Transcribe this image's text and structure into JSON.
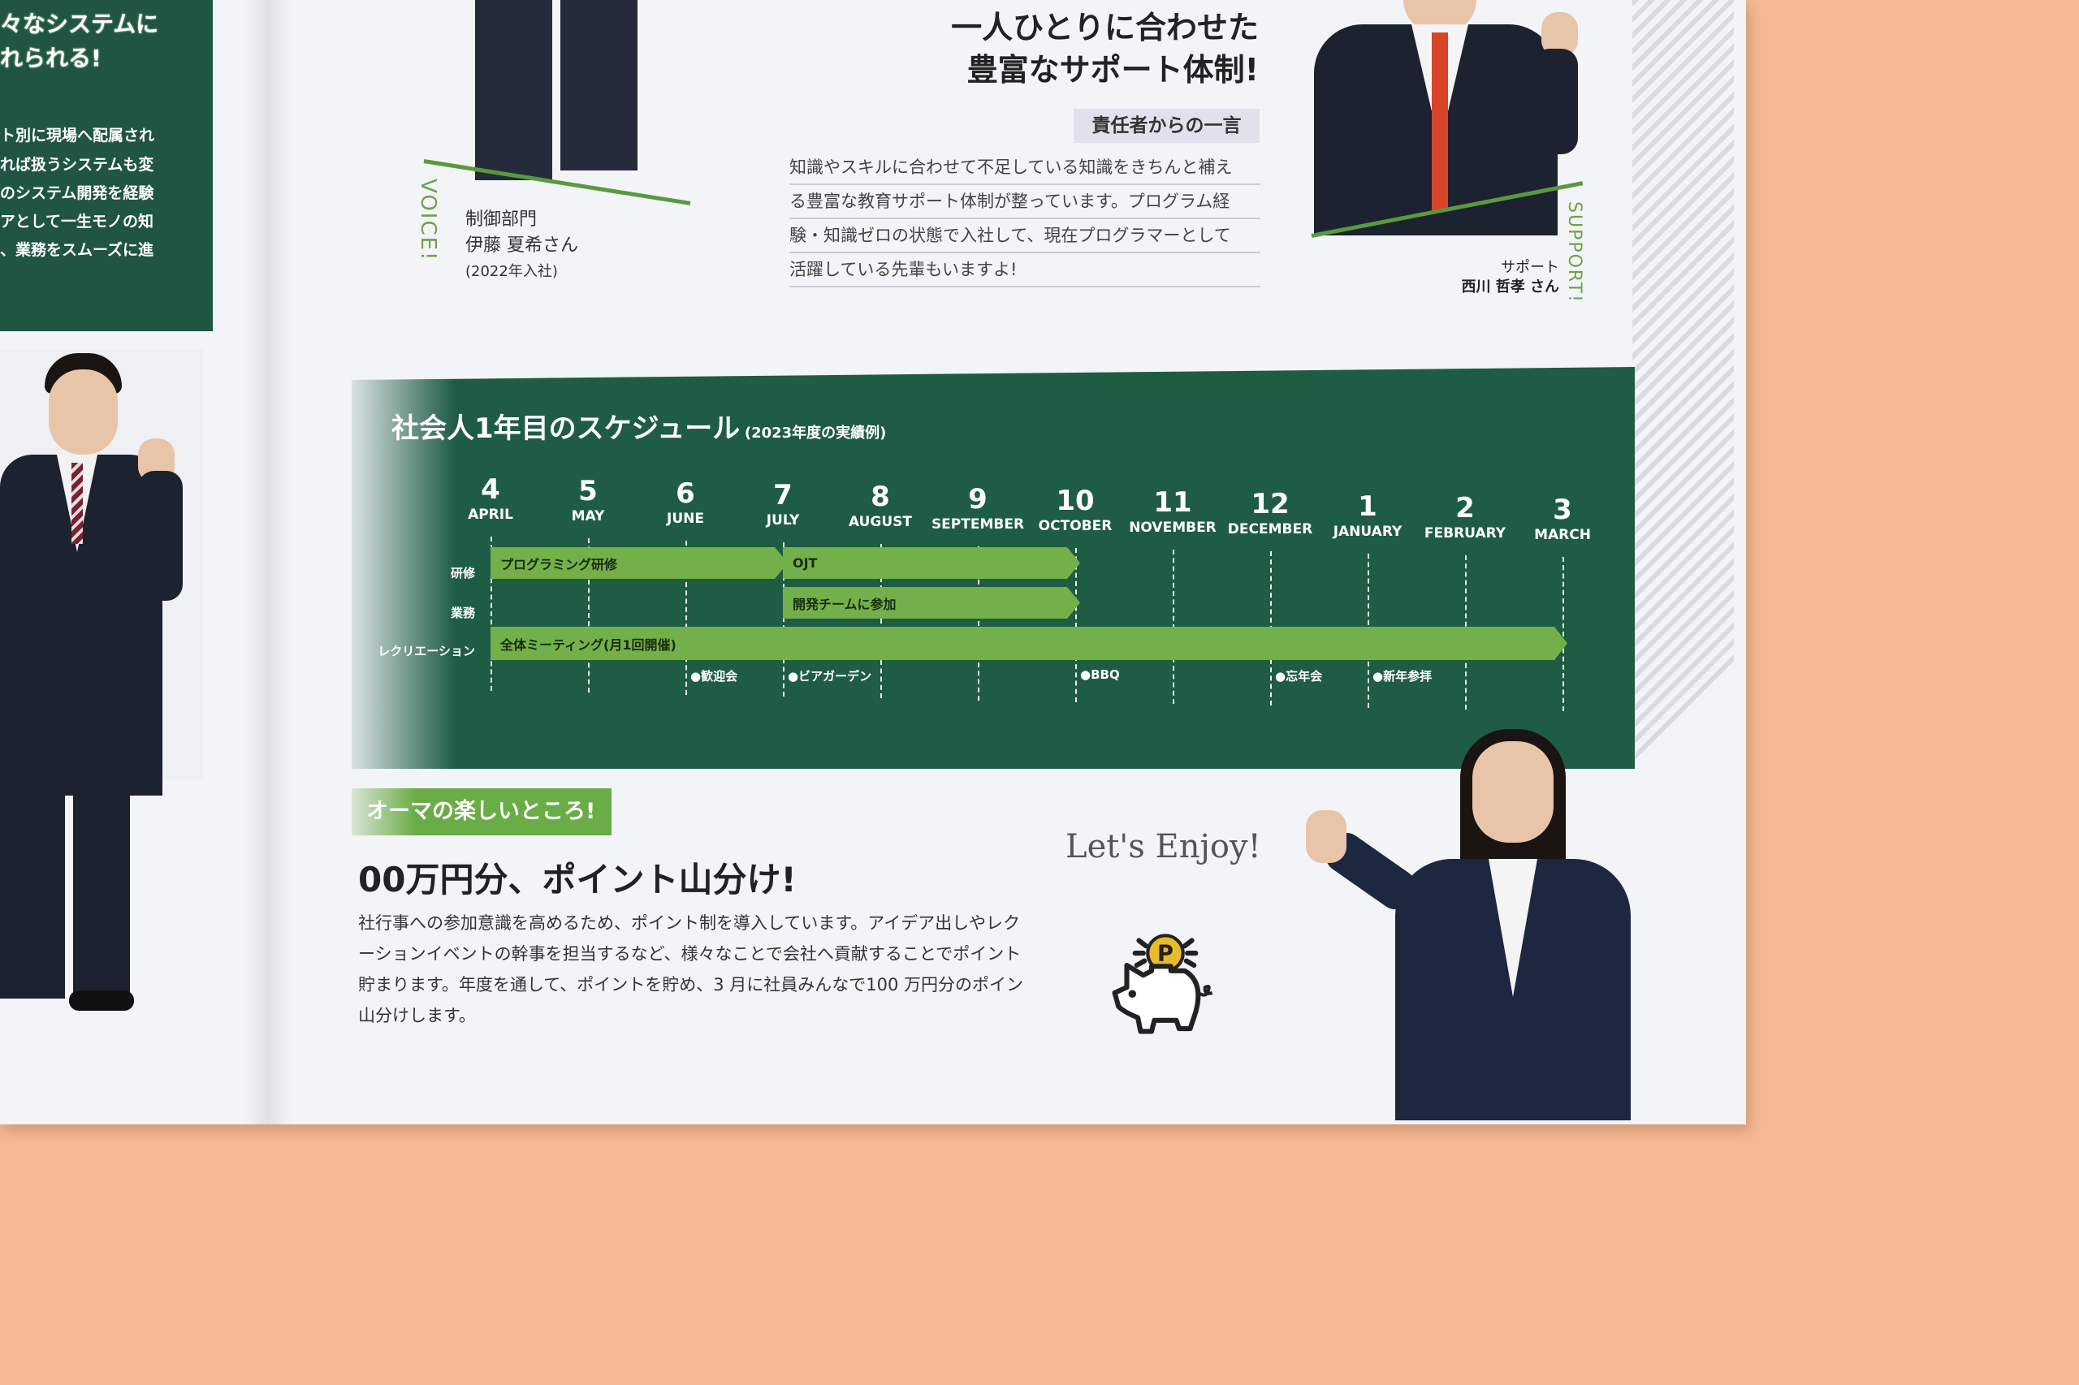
{
  "left_page": {
    "heading_lines": [
      "々なシステムに",
      "れられる!"
    ],
    "body_lines": [
      "ト別に現場へ配属され",
      "れば扱うシステムも変",
      "のシステム開発を経験",
      "アとして一生モノの知",
      "、業務をスムーズに進"
    ]
  },
  "voice": {
    "label": "VOICE!",
    "department": "制御部門",
    "name": "伊藤 夏希さん",
    "joined": "(2022年入社)"
  },
  "support_section": {
    "headline_lines": [
      "一人ひとりに合わせた",
      "豊富なサポート体制!"
    ],
    "tag": "責任者からの一言",
    "body_lines": [
      "知識やスキルに合わせて不足している知識をきちんと補え",
      "る豊富な教育サポート体制が整っています。プログラム経",
      "験・知識ゼロの状態で入社して、現在プログラマーとして",
      "活躍している先輩もいますよ!"
    ],
    "person_role": "サポート",
    "person_name": "西川 哲孝 さん",
    "label": "SUPPORT!"
  },
  "schedule": {
    "title": "社会人1年目のスケジュール",
    "subtitle": "(2023年度の実績例)",
    "months": [
      {
        "num": "4",
        "name": "APRIL"
      },
      {
        "num": "5",
        "name": "MAY"
      },
      {
        "num": "6",
        "name": "JUNE"
      },
      {
        "num": "7",
        "name": "JULY"
      },
      {
        "num": "8",
        "name": "AUGUST"
      },
      {
        "num": "9",
        "name": "SEPTEMBER"
      },
      {
        "num": "10",
        "name": "OCTOBER"
      },
      {
        "num": "11",
        "name": "NOVEMBER"
      },
      {
        "num": "12",
        "name": "DECEMBER"
      },
      {
        "num": "1",
        "name": "JANUARY"
      },
      {
        "num": "2",
        "name": "FEBRUARY"
      },
      {
        "num": "3",
        "name": "MARCH"
      }
    ],
    "rows": [
      "研修",
      "業務",
      "レクリエーション"
    ],
    "bars": [
      {
        "row": 0,
        "label": "プログラミング研修",
        "start": "4",
        "end": "7"
      },
      {
        "row": 0,
        "label": "OJT",
        "start": "7",
        "end": "10"
      },
      {
        "row": 1,
        "label": "開発チームに参加",
        "start": "7",
        "end": "10"
      },
      {
        "row": 2,
        "label": "全体ミーティング(月1回開催)",
        "start": "4",
        "end": "3"
      }
    ],
    "events": [
      {
        "label": "●歓迎会",
        "month": "6"
      },
      {
        "label": "●ビアガーデン",
        "month": "7"
      },
      {
        "label": "●BBQ",
        "month": "10"
      },
      {
        "label": "●忘年会",
        "month": "12"
      },
      {
        "label": "●新年参拝",
        "month": "1"
      }
    ],
    "colors": {
      "background": "#1f5c44",
      "bar": "#74b04a"
    }
  },
  "fun_section": {
    "tag": "オーマの楽しいところ!",
    "headline": "00万円分、ポイント山分け!",
    "body_lines": [
      "社行事への参加意識を高めるため、ポイント制を導入しています。アイデア出しやレク",
      "ーションイベントの幹事を担当するなど、様々なことで会社へ貢献することでポイント",
      "貯まります。年度を通して、ポイントを貯め、3 月に社員みんなで100 万円分のポイン",
      "山分けします。"
    ],
    "script_text": "Let's Enjoy!",
    "coin_letter": "P"
  }
}
